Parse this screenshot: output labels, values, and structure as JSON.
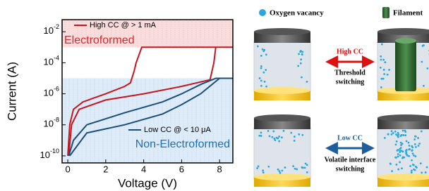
{
  "chart_data": {
    "type": "line",
    "x_label": "Voltage (V)",
    "y_label": "Current (A)",
    "log_y": true,
    "xlim": [
      -0.3,
      8.7
    ],
    "xticks": [
      0,
      2,
      4,
      6,
      8
    ],
    "ylim": [
      3.5e-11,
      0.06
    ],
    "yticks": [
      {
        "value": 0.01,
        "label": "10-2"
      },
      {
        "value": 0.0001,
        "label": "10-4"
      },
      {
        "value": 1e-06,
        "label": "10-6"
      },
      {
        "value": 1e-08,
        "label": "10-8"
      },
      {
        "value": 1e-10,
        "label": "10-10"
      }
    ],
    "regions": [
      {
        "label": "Electroformed",
        "color": "#d62a2a",
        "fill": "#f7d3d3",
        "range": [
          0.001,
          0.06
        ]
      },
      {
        "label": "Non-Electroformed",
        "color": "#1f6fb5",
        "fill": "#d6e6f6",
        "range": [
          3.5e-11,
          1e-05
        ]
      }
    ],
    "series": [
      {
        "name": "High CC @ > 1 mA",
        "color": "#c4161c",
        "x": [
          0,
          0.1,
          0.3,
          0.8,
          2,
          3,
          3.3,
          3.5,
          3.6,
          3.9,
          8.7
        ],
        "values": [
          1e-10,
          1e-08,
          1e-07,
          3e-07,
          1e-06,
          3e-06,
          5e-06,
          3e-05,
          0.0001,
          0.001,
          0.001
        ]
      },
      {
        "color": "#c4161c",
        "x": [
          0.05,
          0.2,
          0.6,
          2,
          4,
          6,
          7.5,
          7.7,
          7.8
        ],
        "values": [
          1e-10,
          1e-08,
          1e-07,
          4e-07,
          1e-06,
          3e-06,
          8e-06,
          0.0001,
          0.001
        ]
      },
      {
        "name": "Low CC @ < 10 μA",
        "color": "#1a4e7a",
        "x": [
          0.05,
          0.3,
          1,
          3,
          5,
          6,
          7,
          7.8,
          8.7
        ],
        "values": [
          1e-10,
          1e-09,
          1e-08,
          6e-08,
          3e-07,
          1e-06,
          4e-06,
          1e-05,
          1e-05
        ]
      },
      {
        "color": "#1a4e7a",
        "x": [
          0.1,
          1,
          3,
          5,
          6,
          7,
          8
        ],
        "values": [
          1e-10,
          3e-09,
          1e-08,
          5e-08,
          2e-07,
          1e-06,
          1e-05
        ]
      }
    ]
  },
  "diagram": {
    "legend": [
      "Oxygen vacancy",
      "Filament"
    ],
    "top_arrow": {
      "label": "High CC",
      "caption": [
        "Threshold",
        "switching"
      ]
    },
    "bottom_arrow": {
      "label": "Low CC",
      "caption": [
        "Volatile interface",
        "switching"
      ]
    }
  }
}
